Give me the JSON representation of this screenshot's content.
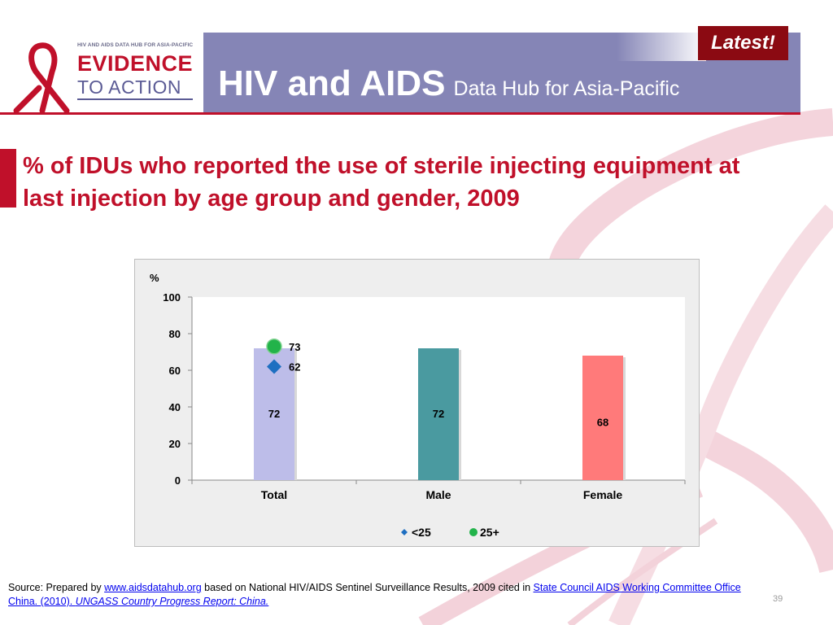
{
  "header": {
    "logo_small": "HIV AND AIDS DATA HUB FOR ASIA-PACIFIC",
    "logo_line1": "EVIDENCE",
    "logo_line2": "TO ACTION",
    "title_main": "HIV and AIDS",
    "title_sub": "Data Hub for Asia-Pacific",
    "latest_badge": "Latest!"
  },
  "slide": {
    "title": "% of IDUs who reported the use of sterile injecting equipment at last injection by age group and gender, 2009",
    "page_number": "39"
  },
  "source": {
    "prefix": "Source: Prepared by ",
    "link1": "www.aidsdatahub.org",
    "middle": "  based on National HIV/AIDS Sentinel Surveillance Results, 2009 cited in ",
    "link2": "State Council AIDS Working Committee Office China. (2010). ",
    "link3": "UNGASS Country Progress Report: China."
  },
  "colors": {
    "header_band": "#8585b6",
    "accent_red": "#c0102a",
    "bar_total": "#bdbde9",
    "bar_male": "#4a9aa0",
    "bar_female": "#ff7a7a",
    "marker_under25": "#1e6fc1",
    "marker_25plus": "#22b34a"
  },
  "chart_data": {
    "type": "bar",
    "ylabel": "%",
    "ylim": [
      0,
      100
    ],
    "yticks": [
      0,
      20,
      40,
      60,
      80,
      100
    ],
    "categories": [
      "Total",
      "Male",
      "Female"
    ],
    "bars": {
      "values": [
        72,
        72,
        68
      ],
      "labels": [
        "72",
        "72",
        "68"
      ]
    },
    "markers": [
      {
        "name": "<25",
        "shape": "diamond",
        "category": "Total",
        "value": 62,
        "label": "62"
      },
      {
        "name": "25+",
        "shape": "circle",
        "category": "Total",
        "value": 73,
        "label": "73"
      }
    ],
    "legend": [
      "<25",
      "25+"
    ],
    "legend_position": "bottom",
    "grid": false
  }
}
